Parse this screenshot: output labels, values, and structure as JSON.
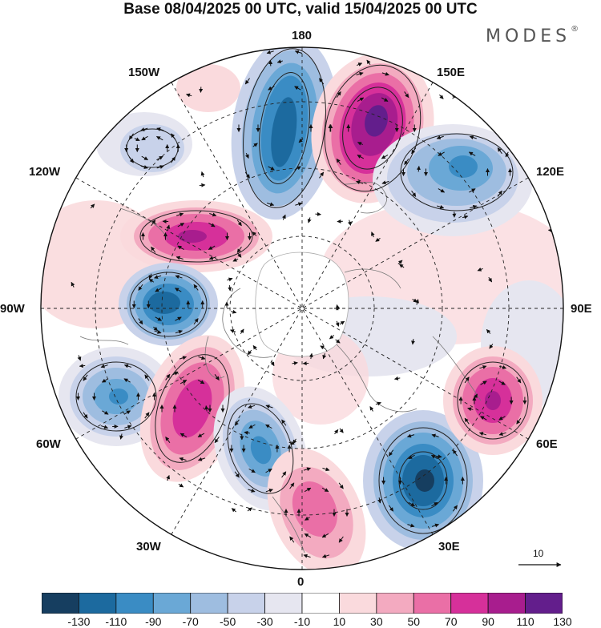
{
  "title": "Base 08/04/2025 00 UTC, valid 15/04/2025 00 UTC",
  "brand": {
    "name": "MODES",
    "mark": "®"
  },
  "longitude_labels": {
    "n180": "180",
    "n150e": "150E",
    "n120e": "120E",
    "n90e": "90E",
    "n60e": "60E",
    "n30e": "30E",
    "n0": "0",
    "n30w": "30W",
    "n60w": "60W",
    "n90w": "90W",
    "n120w": "120W",
    "n150w": "150W"
  },
  "vector_scale": {
    "value": "10"
  },
  "colorbar": {
    "colors": [
      "#163e60",
      "#1c6a9f",
      "#3a8cc4",
      "#6aa8d6",
      "#9ebde0",
      "#c8d2ea",
      "#e6e6f0",
      "#ffffff",
      "#fadadd",
      "#f3aac0",
      "#ea6fa6",
      "#d6309a",
      "#a81d8e",
      "#631e8c"
    ],
    "tick_labels": [
      "-130",
      "-110",
      "-90",
      "-70",
      "-50",
      "-30",
      "-10",
      "10",
      "30",
      "50",
      "70",
      "90",
      "110",
      "130"
    ]
  },
  "anomaly_centers": [
    {
      "id": "neg-180",
      "sign": "negative",
      "peak": -110
    },
    {
      "id": "pos-150e",
      "sign": "positive",
      "peak": 130
    },
    {
      "id": "neg-120e",
      "sign": "negative",
      "peak": -70
    },
    {
      "id": "pos-105w",
      "sign": "positive",
      "peak": 90
    },
    {
      "id": "neg-90w",
      "sign": "negative",
      "peak": -110
    },
    {
      "id": "neg-60w",
      "sign": "negative",
      "peak": -70
    },
    {
      "id": "pos-45w",
      "sign": "positive",
      "peak": 90
    },
    {
      "id": "neg-20w",
      "sign": "negative",
      "peak": -90
    },
    {
      "id": "pos-10e",
      "sign": "positive",
      "peak": 70
    },
    {
      "id": "neg-30e",
      "sign": "negative",
      "peak": -110
    },
    {
      "id": "pos-60e",
      "sign": "positive",
      "peak": 110
    },
    {
      "id": "pos-150w",
      "sign": "negative",
      "peak": -30
    }
  ]
}
